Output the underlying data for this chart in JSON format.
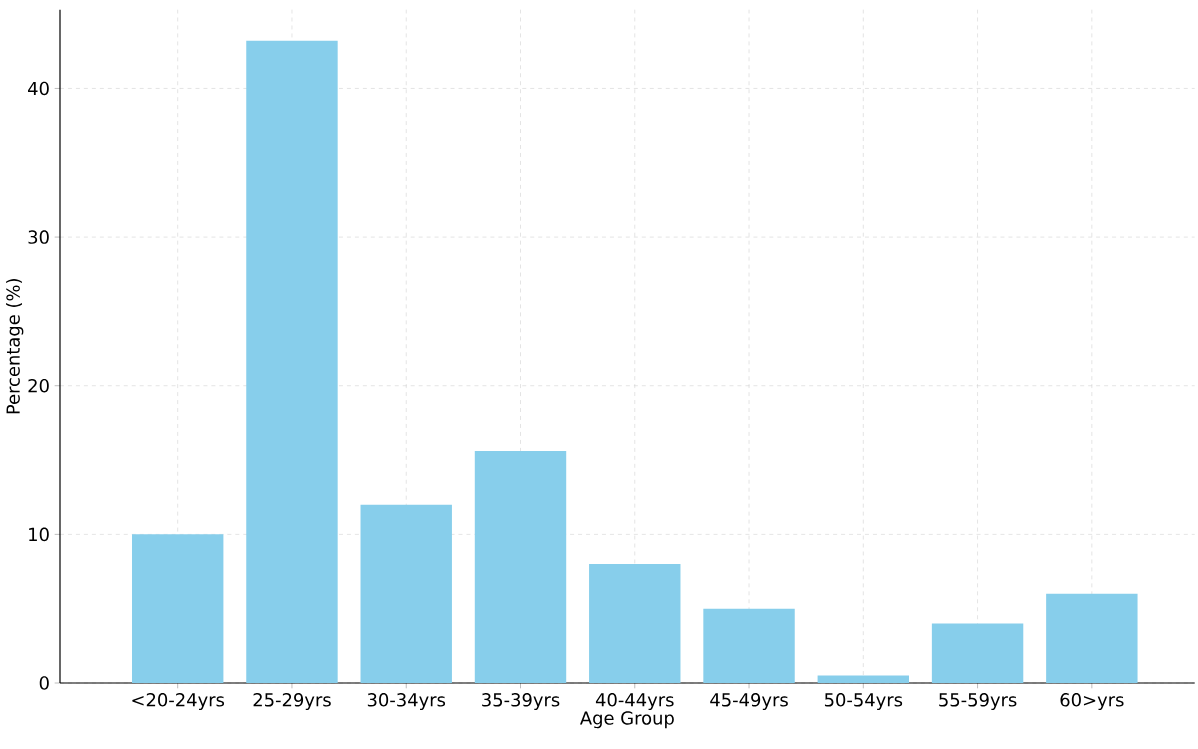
{
  "chart_data": {
    "type": "bar",
    "xlabel": "Age Group",
    "ylabel": "Percentage (%)",
    "categories": [
      "<20-24yrs",
      "25-29yrs",
      "30-34yrs",
      "35-39yrs",
      "40-44yrs",
      "45-49yrs",
      "50-54yrs",
      "55-59yrs",
      "60>yrs"
    ],
    "values": [
      10,
      43.2,
      12,
      15.6,
      8,
      5,
      0.5,
      4,
      6
    ],
    "color": "#87ceeb",
    "ylim": [
      0,
      45.3
    ],
    "yticks": [
      0,
      10,
      20,
      30,
      40
    ],
    "grid": true
  }
}
